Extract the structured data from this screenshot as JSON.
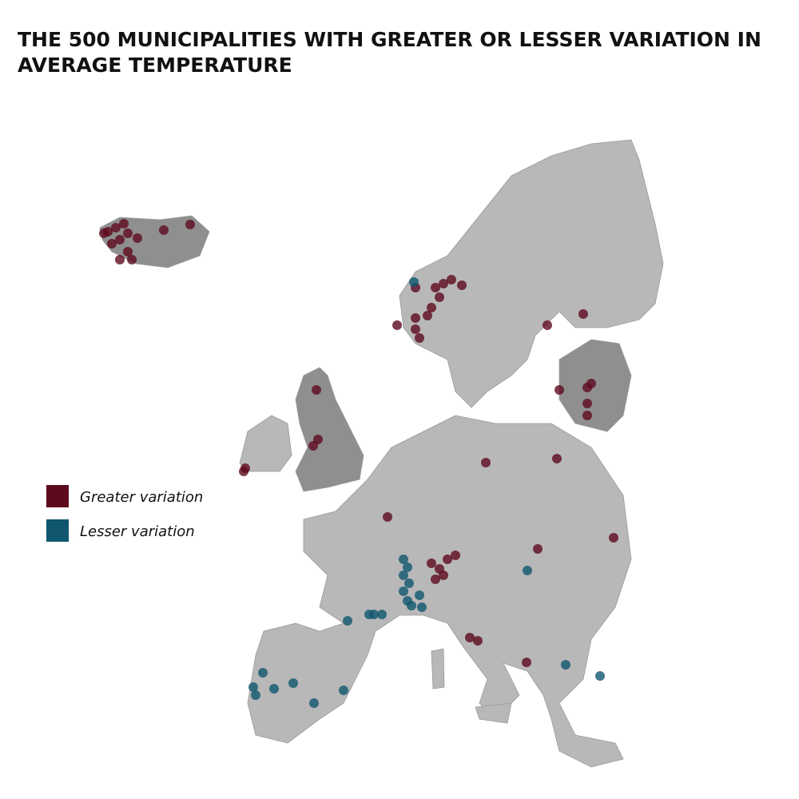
{
  "title": "THE 500 MUNICIPALITIES WITH GREATER OR LESSER VARIATION IN AVERAGE TEMPERATURE",
  "legend": [
    {
      "label": "Greater variation",
      "color": "#5e0a1e"
    },
    {
      "label": "Lesser variation",
      "color": "#10566e"
    }
  ]
}
